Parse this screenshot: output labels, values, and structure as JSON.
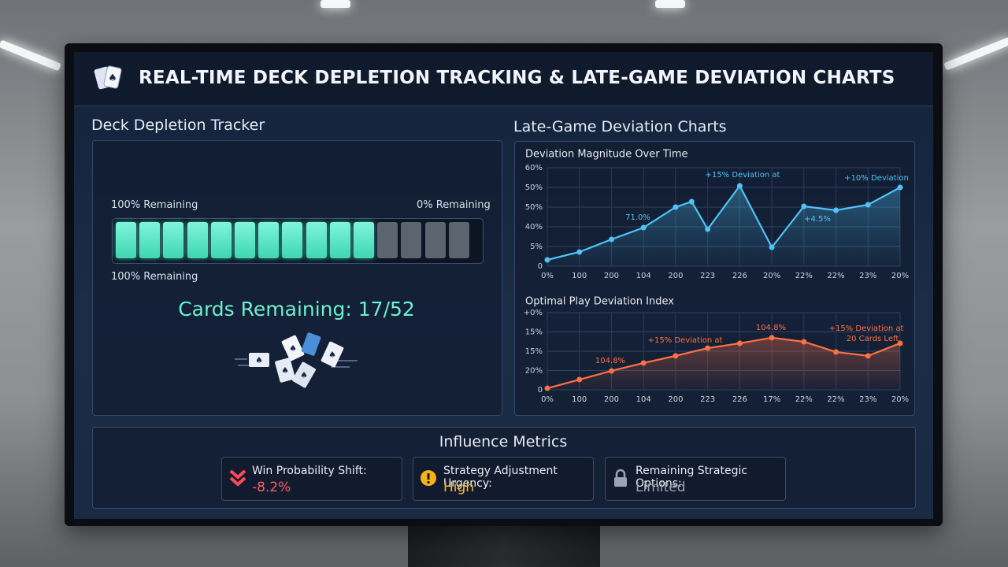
{
  "header": {
    "title": "REAL-TIME DECK DEPLETION TRACKING & LATE-GAME DEVIATION CHARTS"
  },
  "deck_tracker": {
    "title": "Deck Depletion Tracker",
    "label_left": "100% Remaining",
    "label_right": "0% Remaining",
    "label_bottom": "100% Remaining",
    "cards_remaining": "Cards Remaining: 17/52"
  },
  "deviation": {
    "title": "Late-Game Deviation Charts",
    "charts": [
      {
        "type": "line",
        "title": "Deviation Magnitude Over Time",
        "color": "#4fc3f7",
        "x": [
          0,
          1,
          2,
          3,
          4,
          4.5,
          5,
          6,
          7,
          8,
          9,
          10,
          11
        ],
        "values": [
          3.2,
          7.2,
          13.6,
          19.6,
          30,
          32.8,
          18.8,
          40.8,
          9.6,
          30.4,
          28.4,
          31.2,
          40
        ],
        "xlim": [
          0,
          11
        ],
        "xticks": [
          {
            "value": 0,
            "label": "0%"
          },
          {
            "value": 1,
            "label": "100"
          },
          {
            "value": 2,
            "label": "200"
          },
          {
            "value": 3,
            "label": "104"
          },
          {
            "value": 4,
            "label": "200"
          },
          {
            "value": 5,
            "label": "223"
          },
          {
            "value": 6,
            "label": "226"
          },
          {
            "value": 7,
            "label": "20%"
          },
          {
            "value": 8,
            "label": "22%"
          },
          {
            "value": 9,
            "label": "22%"
          },
          {
            "value": 10,
            "label": "23%"
          },
          {
            "value": 11,
            "label": "20%"
          }
        ],
        "ylim": [
          0,
          50
        ],
        "yticks": [
          0,
          {
            "value": 10,
            "label": "5%"
          },
          {
            "value": 20,
            "label": "40%"
          },
          {
            "value": 30,
            "label": "50%"
          },
          {
            "value": 40,
            "label": "50%"
          },
          {
            "value": 50,
            "label": "60%"
          }
        ],
        "grid": true,
        "annotations": [
          "+15% Deviation at",
          "+10% Deviation",
          "71.0%",
          "+4.5%"
        ]
      },
      {
        "type": "line",
        "title": "Optimal Play Deviation Index",
        "color": "#ff7043",
        "x": [
          0,
          1,
          2,
          3,
          4,
          5,
          6,
          7,
          8,
          9,
          10,
          11
        ],
        "values": [
          0.8,
          5.3,
          9.8,
          13.9,
          17.6,
          21.6,
          24.1,
          27,
          24.9,
          19.6,
          17.6,
          24.1
        ],
        "xlim": [
          0,
          11
        ],
        "xticks": [
          {
            "value": 0,
            "label": "0%"
          },
          {
            "value": 1,
            "label": "100"
          },
          {
            "value": 2,
            "label": "200"
          },
          {
            "value": 3,
            "label": "104"
          },
          {
            "value": 4,
            "label": "200"
          },
          {
            "value": 5,
            "label": "223"
          },
          {
            "value": 6,
            "label": "226"
          },
          {
            "value": 7,
            "label": "17%"
          },
          {
            "value": 8,
            "label": "22%"
          },
          {
            "value": 9,
            "label": "22%"
          },
          {
            "value": 10,
            "label": "23%"
          },
          {
            "value": 11,
            "label": "20%"
          }
        ],
        "ylim": [
          0,
          40
        ],
        "yticks": [
          0,
          {
            "value": 10,
            "label": "20%"
          },
          {
            "value": 20,
            "label": "15%"
          },
          {
            "value": 30,
            "label": "15%"
          },
          {
            "value": 40,
            "label": "+0%"
          }
        ],
        "grid": true,
        "annotations": [
          "+15% Deviation at",
          "104.8%",
          "+15% Deviation at",
          "20 Cards Left",
          "104.8%"
        ]
      }
    ]
  },
  "metrics": {
    "title": "Influence Metrics",
    "items": [
      {
        "label": "Win Probability Shift:",
        "value": "-8.2%"
      },
      {
        "label": "Strategy Adjustment Urgency:",
        "value": "High"
      },
      {
        "label": "Remaining Strategic Options:",
        "value": "Limited"
      }
    ]
  }
}
